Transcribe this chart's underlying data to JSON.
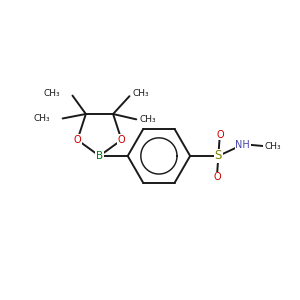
{
  "background_color": "#ffffff",
  "bond_color": "#1a1a1a",
  "bond_lw": 1.4,
  "colors": {
    "B": "#008000",
    "O": "#cc0000",
    "S": "#808000",
    "N": "#4444aa",
    "C": "#1a1a1a"
  },
  "font_size": 7.0,
  "fig_size": [
    3.0,
    3.0
  ],
  "dpi": 100,
  "xlim": [
    0,
    10
  ],
  "ylim": [
    0,
    10
  ]
}
